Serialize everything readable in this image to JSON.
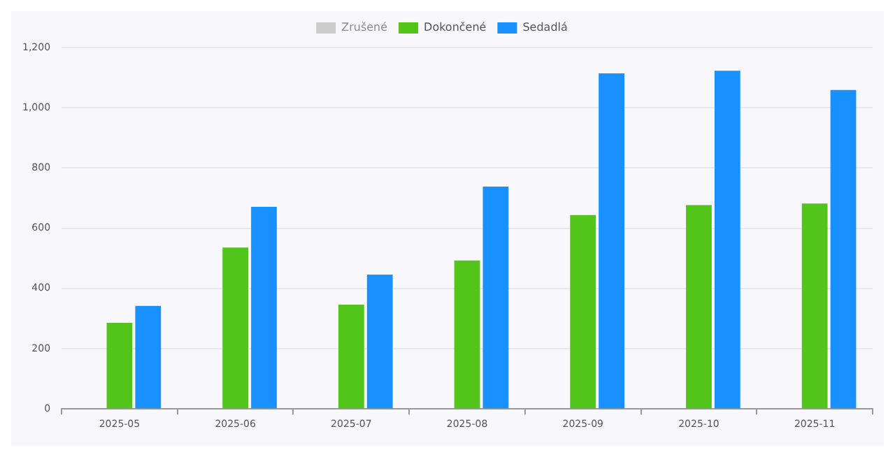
{
  "chart_data": {
    "type": "bar",
    "categories": [
      "2025-05",
      "2025-06",
      "2025-07",
      "2025-08",
      "2025-09",
      "2025-10",
      "2025-11"
    ],
    "series": [
      {
        "name": "Zrušené",
        "color": "#cccccc",
        "values": [
          null,
          null,
          null,
          null,
          null,
          null,
          null
        ]
      },
      {
        "name": "Dokončené",
        "color": "#52c41a",
        "values": [
          286,
          536,
          346,
          493,
          644,
          677,
          682
        ]
      },
      {
        "name": "Sedadlá",
        "color": "#1890ff",
        "values": [
          342,
          671,
          446,
          738,
          1114,
          1123,
          1059
        ]
      }
    ],
    "ylim": [
      0,
      1200
    ],
    "yticks": [
      0,
      200,
      400,
      600,
      800,
      {
        "value": 1000,
        "label": "1,000"
      },
      {
        "value": 1200,
        "label": "1,200"
      }
    ],
    "grid": "y",
    "legend": "top"
  }
}
